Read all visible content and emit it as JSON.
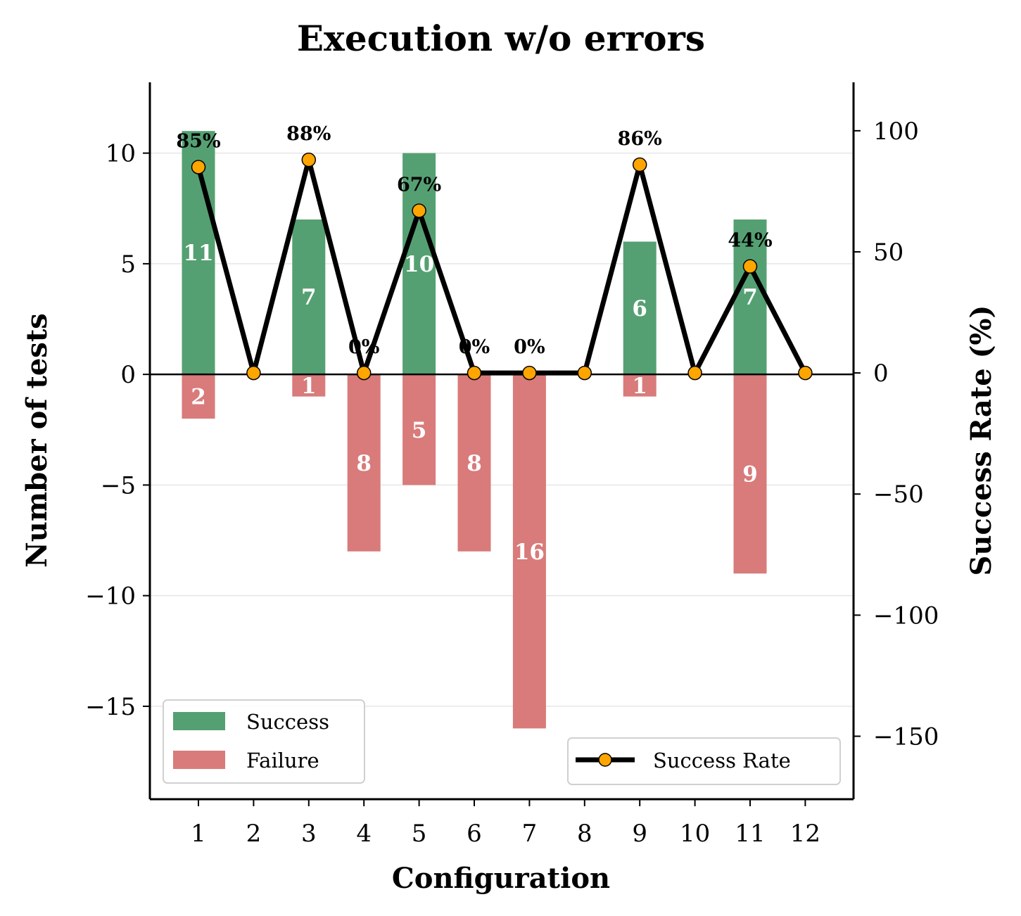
{
  "chart_data": {
    "type": "bar",
    "title": "Execution w/o errors",
    "xlabel": "Configuration",
    "ylabel": "Number of tests",
    "y2label": "Success Rate (%)",
    "categories": [
      "1",
      "2",
      "3",
      "4",
      "5",
      "6",
      "7",
      "8",
      "9",
      "10",
      "11",
      "12"
    ],
    "series": [
      {
        "name": "Success",
        "kind": "bar",
        "values": [
          11,
          0,
          7,
          0,
          10,
          0,
          0,
          0,
          6,
          0,
          7,
          0
        ],
        "color": "#55a072"
      },
      {
        "name": "Failure",
        "kind": "bar",
        "values": [
          -2,
          0,
          -1,
          -8,
          -5,
          -8,
          -16,
          0,
          -1,
          0,
          -9,
          0
        ],
        "color": "#d87b7a"
      },
      {
        "name": "Success Rate",
        "kind": "line",
        "axis": "right",
        "values": [
          85,
          0,
          88,
          0,
          67,
          0,
          0,
          0,
          86,
          0,
          44,
          0
        ],
        "color": "#000000",
        "marker_color": "#ffa500"
      }
    ],
    "bar_labels": {
      "success": [
        "11",
        "",
        "7",
        "",
        "10",
        "",
        "",
        "",
        "6",
        "",
        "7",
        ""
      ],
      "failure": [
        "2",
        "",
        "1",
        "8",
        "5",
        "8",
        "16",
        "",
        "1",
        "",
        "9",
        ""
      ]
    },
    "rate_labels": [
      "85%",
      "",
      "88%",
      "0%",
      "67%",
      "0%",
      "0%",
      "",
      "86%",
      "",
      "44%",
      ""
    ],
    "ylim": [
      -19.2,
      13.2
    ],
    "yticks": [
      -15,
      -10,
      -5,
      0,
      5,
      10
    ],
    "ytick_labels": [
      "−15",
      "−10",
      "−5",
      "0",
      "5",
      "10"
    ],
    "y2lim": [
      -176,
      120
    ],
    "y2ticks": [
      -150,
      -100,
      -50,
      0,
      50,
      100
    ],
    "y2tick_labels": [
      "−150",
      "−100",
      "−50",
      "0",
      "50",
      "100"
    ],
    "grid": "horizontal",
    "legend": [
      {
        "placement": "lower-left",
        "entries": [
          "Success",
          "Failure"
        ]
      },
      {
        "placement": "lower-right",
        "entries": [
          "Success Rate"
        ]
      }
    ]
  }
}
